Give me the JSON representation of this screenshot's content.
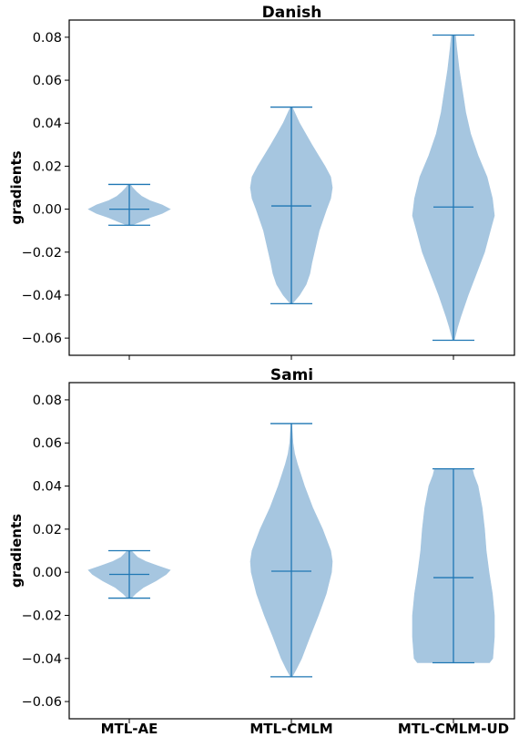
{
  "chart_data": {
    "type": "violin",
    "categories": [
      "MTL-AE",
      "MTL-CMLM",
      "MTL-CMLM-UD"
    ],
    "ylabel": "gradients",
    "ylim": [
      -0.068,
      0.088
    ],
    "yticks": [
      -0.06,
      -0.04,
      -0.02,
      0.0,
      0.02,
      0.04,
      0.06,
      0.08
    ],
    "ytick_labels": [
      "−0.06",
      "−0.04",
      "−0.02",
      "0.00",
      "0.02",
      "0.04",
      "0.06",
      "0.08"
    ],
    "colors": {
      "body": "#a6c6e0",
      "line": "#1f77b4",
      "axis": "#000000"
    },
    "grid": false,
    "panels": [
      {
        "title": "Danish",
        "violins": [
          {
            "category": "MTL-AE",
            "max": 0.0115,
            "min": -0.0075,
            "median": 0.0,
            "profile": [
              [
                -0.0075,
                0.05
              ],
              [
                -0.006,
                0.25
              ],
              [
                -0.004,
                0.5
              ],
              [
                -0.002,
                0.8
              ],
              [
                0.0,
                1.0
              ],
              [
                0.002,
                0.8
              ],
              [
                0.004,
                0.5
              ],
              [
                0.006,
                0.3
              ],
              [
                0.008,
                0.18
              ],
              [
                0.01,
                0.08
              ],
              [
                0.0115,
                0.03
              ]
            ]
          },
          {
            "category": "MTL-CMLM",
            "max": 0.0475,
            "min": -0.044,
            "median": 0.0015,
            "profile": [
              [
                -0.044,
                0.02
              ],
              [
                -0.04,
                0.2
              ],
              [
                -0.035,
                0.36
              ],
              [
                -0.03,
                0.45
              ],
              [
                -0.025,
                0.5
              ],
              [
                -0.02,
                0.56
              ],
              [
                -0.01,
                0.68
              ],
              [
                0.0,
                0.86
              ],
              [
                0.005,
                0.96
              ],
              [
                0.01,
                1.0
              ],
              [
                0.015,
                0.96
              ],
              [
                0.02,
                0.82
              ],
              [
                0.025,
                0.66
              ],
              [
                0.03,
                0.5
              ],
              [
                0.035,
                0.35
              ],
              [
                0.04,
                0.2
              ],
              [
                0.045,
                0.08
              ],
              [
                0.0475,
                0.02
              ]
            ]
          },
          {
            "category": "MTL-CMLM-UD",
            "max": 0.081,
            "min": -0.061,
            "median": 0.001,
            "profile": [
              [
                -0.061,
                0.02
              ],
              [
                -0.055,
                0.1
              ],
              [
                -0.05,
                0.18
              ],
              [
                -0.04,
                0.36
              ],
              [
                -0.03,
                0.56
              ],
              [
                -0.02,
                0.76
              ],
              [
                -0.01,
                0.9
              ],
              [
                -0.003,
                1.0
              ],
              [
                0.005,
                0.95
              ],
              [
                0.015,
                0.82
              ],
              [
                0.025,
                0.6
              ],
              [
                0.035,
                0.42
              ],
              [
                0.045,
                0.3
              ],
              [
                0.055,
                0.22
              ],
              [
                0.065,
                0.14
              ],
              [
                0.075,
                0.08
              ],
              [
                0.081,
                0.05
              ]
            ]
          }
        ]
      },
      {
        "title": "Sami",
        "violins": [
          {
            "category": "MTL-AE",
            "max": 0.01,
            "min": -0.012,
            "median": -0.001,
            "profile": [
              [
                -0.012,
                0.05
              ],
              [
                -0.01,
                0.15
              ],
              [
                -0.007,
                0.35
              ],
              [
                -0.004,
                0.65
              ],
              [
                -0.001,
                0.9
              ],
              [
                0.001,
                1.0
              ],
              [
                0.003,
                0.7
              ],
              [
                0.005,
                0.4
              ],
              [
                0.007,
                0.2
              ],
              [
                0.009,
                0.1
              ],
              [
                0.01,
                0.05
              ]
            ]
          },
          {
            "category": "MTL-CMLM",
            "max": 0.069,
            "min": -0.0485,
            "median": 0.0005,
            "profile": [
              [
                -0.0485,
                0.02
              ],
              [
                -0.045,
                0.12
              ],
              [
                -0.04,
                0.25
              ],
              [
                -0.03,
                0.45
              ],
              [
                -0.02,
                0.66
              ],
              [
                -0.01,
                0.85
              ],
              [
                0.0,
                0.98
              ],
              [
                0.005,
                1.0
              ],
              [
                0.01,
                0.96
              ],
              [
                0.02,
                0.76
              ],
              [
                0.03,
                0.52
              ],
              [
                0.04,
                0.32
              ],
              [
                0.05,
                0.15
              ],
              [
                0.055,
                0.08
              ],
              [
                0.06,
                0.04
              ],
              [
                0.069,
                0.01
              ]
            ]
          },
          {
            "category": "MTL-CMLM-UD",
            "max": 0.048,
            "min": -0.042,
            "median": -0.0025,
            "profile": [
              [
                -0.042,
                0.88
              ],
              [
                -0.04,
                0.96
              ],
              [
                -0.03,
                1.0
              ],
              [
                -0.02,
                1.0
              ],
              [
                -0.01,
                0.95
              ],
              [
                0.0,
                0.87
              ],
              [
                0.01,
                0.8
              ],
              [
                0.02,
                0.76
              ],
              [
                0.03,
                0.7
              ],
              [
                0.04,
                0.6
              ],
              [
                0.045,
                0.5
              ],
              [
                0.048,
                0.46
              ]
            ]
          }
        ]
      }
    ]
  }
}
